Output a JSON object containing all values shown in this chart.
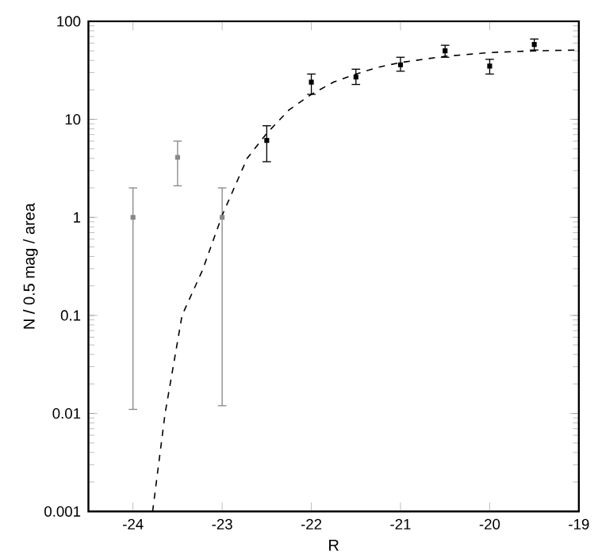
{
  "chart_data": {
    "type": "scatter",
    "xlabel": "R",
    "ylabel": "N / 0.5 mag / area",
    "log": "y",
    "xlim": [
      -24.5,
      -19
    ],
    "ylim": [
      0.001,
      100
    ],
    "xticks": [
      -24,
      -23,
      -22,
      -21,
      -20,
      -19
    ],
    "yticks": [
      0.001,
      0.01,
      0.1,
      1,
      10,
      100
    ],
    "series": [
      {
        "color": "#888888",
        "marker": "square",
        "x": [
          -24,
          -23.5,
          -23
        ],
        "values": [
          1,
          4.1,
          1
        ],
        "errors": [
          [
            0.011,
            2
          ],
          [
            2.1,
            6
          ],
          [
            0.012,
            2
          ]
        ]
      },
      {
        "color": "#000000",
        "marker": "square",
        "x": [
          -22.5,
          -22,
          -21.5,
          -21,
          -20.5,
          -20,
          -19.5
        ],
        "values": [
          6.1,
          24,
          27,
          36,
          50,
          35,
          58
        ],
        "errors": [
          [
            3.7,
            8.6
          ],
          [
            18,
            29
          ],
          [
            22.7,
            32.5
          ],
          [
            31,
            43
          ],
          [
            43,
            57
          ],
          [
            29,
            41
          ],
          [
            51,
            66
          ]
        ]
      },
      {
        "type": "line",
        "line_style": "dashed",
        "color": "#000000",
        "x": [
          -23.78,
          -23.64,
          -23.45,
          -23.22,
          -23.0,
          -22.72,
          -22.5,
          -22.25,
          -22,
          -21.75,
          -21.5,
          -21.25,
          -21,
          -20.5,
          -20,
          -19.5,
          -19
        ],
        "values": [
          0.001,
          0.01,
          0.1,
          0.29,
          1.05,
          4,
          7.2,
          12.5,
          18,
          24,
          29,
          34,
          38,
          44,
          48,
          50,
          51
        ]
      }
    ]
  }
}
